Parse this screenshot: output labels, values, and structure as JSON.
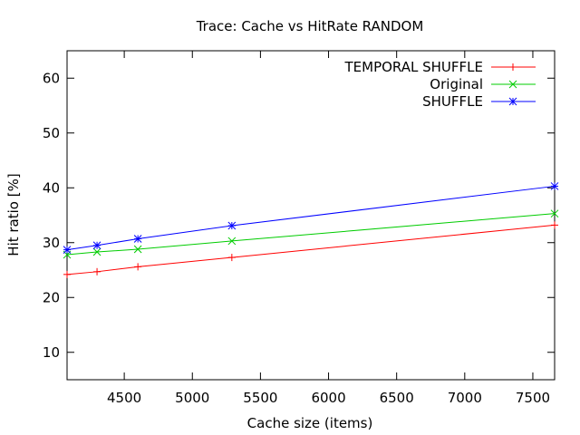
{
  "chart_data": {
    "type": "line",
    "title": "Trace: Cache vs HitRate RANDOM",
    "xlabel": "Cache size (items)",
    "ylabel": "Hit ratio [%]",
    "xlim": [
      4080,
      7660
    ],
    "ylim": [
      5,
      65
    ],
    "xticks": [
      4500,
      5000,
      5500,
      6000,
      6500,
      7000,
      7500
    ],
    "yticks": [
      10,
      20,
      30,
      40,
      50,
      60
    ],
    "grid": false,
    "legend_position": "top-right",
    "series": [
      {
        "name": "TEMPORAL SHUFFLE",
        "color": "#ff0000",
        "marker": "plus",
        "x": [
          4080,
          4300,
          4600,
          5290,
          7660
        ],
        "y": [
          24.2,
          24.7,
          25.6,
          27.3,
          33.2
        ]
      },
      {
        "name": "Original",
        "color": "#00cc00",
        "marker": "cross",
        "x": [
          4080,
          4300,
          4600,
          5290,
          7660
        ],
        "y": [
          27.8,
          28.3,
          28.8,
          30.3,
          35.3
        ]
      },
      {
        "name": "SHUFFLE",
        "color": "#0000ff",
        "marker": "star",
        "x": [
          4080,
          4300,
          4600,
          5290,
          7660
        ],
        "y": [
          28.7,
          29.5,
          30.7,
          33.1,
          40.3
        ]
      }
    ]
  }
}
